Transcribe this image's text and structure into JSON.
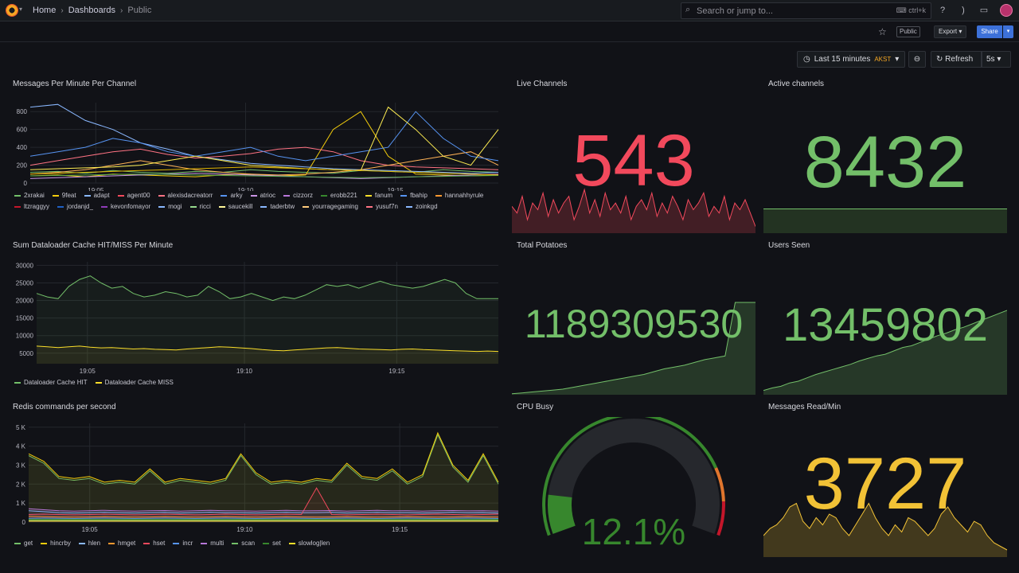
{
  "breadcrumb": {
    "home": "Home",
    "dashboards": "Dashboards",
    "current": "Public"
  },
  "search": {
    "placeholder": "Search or jump to...",
    "shortcut": "ctrl+k"
  },
  "toolbar": {
    "public_badge": "Public",
    "export_label": "Export",
    "share_label": "Share"
  },
  "time": {
    "range_label": "Last 15 minutes",
    "timezone": "AKST",
    "refresh_label": "Refresh",
    "interval": "5s"
  },
  "panels": {
    "messages_per_minute": {
      "title": "Messages Per Minute Per Channel"
    },
    "live_channels": {
      "title": "Live Channels",
      "value": "543",
      "color": "#f2495c"
    },
    "active_channels": {
      "title": "Active channels",
      "value": "8432",
      "color": "#73bf69"
    },
    "dataloader": {
      "title": "Sum Dataloader Cache HIT/MISS Per Minute"
    },
    "total_potatoes": {
      "title": "Total Potatoes",
      "value": "1189309530",
      "color": "#73bf69"
    },
    "users_seen": {
      "title": "Users Seen",
      "value": "13459802",
      "color": "#73bf69"
    },
    "redis": {
      "title": "Redis commands per second"
    },
    "cpu_busy": {
      "title": "CPU Busy",
      "value": "12.1%",
      "value_percent": 12.1,
      "color": "#37872d"
    },
    "messages_read": {
      "title": "Messages Read/Min",
      "value": "3727",
      "color": "#f2c236"
    }
  },
  "chart_data": [
    {
      "type": "line",
      "title": "Messages Per Minute Per Channel",
      "x_ticks": [
        "19:05",
        "19:10",
        "19:15"
      ],
      "y_ticks": [
        "0",
        "200",
        "400",
        "600",
        "800"
      ],
      "ylim": [
        0,
        900
      ],
      "series": [
        {
          "name": "2xrakai",
          "color": "#73bf69",
          "values": [
            120,
            130,
            110,
            140,
            120,
            110,
            130,
            120,
            150,
            130,
            120,
            110,
            140,
            130,
            120,
            150,
            130,
            120
          ]
        },
        {
          "name": "9feat",
          "color": "#f2cc0c",
          "values": [
            80,
            90,
            70,
            100,
            90,
            80,
            70,
            90,
            100,
            80,
            90,
            600,
            800,
            300,
            100,
            90,
            80,
            90
          ]
        },
        {
          "name": "adapt",
          "color": "#8ab8ff",
          "values": [
            850,
            880,
            700,
            600,
            450,
            380,
            300,
            260,
            220,
            200,
            180,
            160,
            150,
            140,
            130,
            120,
            110,
            120
          ]
        },
        {
          "name": "agent00",
          "color": "#ff7383",
          "values": [
            200,
            250,
            300,
            350,
            380,
            320,
            280,
            300,
            330,
            380,
            400,
            350,
            250,
            200,
            180,
            170,
            160,
            150
          ]
        },
        {
          "name": "alexisdacreatorr",
          "color": "#ffb357",
          "values": [
            100,
            120,
            150,
            200,
            250,
            200,
            150,
            120,
            100,
            90,
            100,
            120,
            150,
            200,
            250,
            300,
            350,
            200
          ]
        },
        {
          "name": "arky",
          "color": "#5794f2",
          "values": [
            300,
            350,
            400,
            500,
            450,
            350,
            300,
            350,
            400,
            300,
            250,
            300,
            350,
            400,
            800,
            500,
            300,
            250
          ]
        },
        {
          "name": "atrioc",
          "color": "#ca95e5",
          "values": [
            50,
            60,
            70,
            80,
            90,
            100,
            110,
            100,
            90,
            80,
            70,
            60,
            50,
            60,
            70,
            80,
            90,
            100
          ]
        },
        {
          "name": "cizzorz",
          "color": "#ffee52",
          "values": [
            150,
            160,
            170,
            180,
            200,
            250,
            300,
            250,
            200,
            180,
            160,
            150,
            140,
            850,
            600,
            300,
            200,
            600
          ]
        },
        {
          "name": "erobb221",
          "color": "#56a64b",
          "values": [
            80,
            85,
            90,
            95,
            100,
            95,
            90,
            85,
            80,
            75,
            70,
            65,
            60,
            65,
            70,
            75,
            80,
            85
          ]
        },
        {
          "name": "fanum",
          "color": "#e0b400",
          "values": [
            100,
            110,
            120,
            130,
            140,
            150,
            160,
            170,
            180,
            170,
            160,
            150,
            140,
            130,
            120,
            110,
            100,
            90
          ]
        }
      ]
    },
    {
      "type": "line",
      "title": "Sum Dataloader Cache HIT/MISS Per Minute",
      "x_ticks": [
        "19:05",
        "19:10",
        "19:15"
      ],
      "y_ticks": [
        "5000",
        "10000",
        "15000",
        "20000",
        "25000",
        "30000"
      ],
      "ylim": [
        2000,
        31000
      ],
      "series": [
        {
          "name": "Dataloader Cache HIT",
          "color": "#73bf69",
          "values": [
            22000,
            21000,
            20500,
            24000,
            26000,
            27000,
            25000,
            23500,
            24000,
            22000,
            21000,
            21500,
            22500,
            22000,
            21000,
            21500,
            24000,
            22500,
            20500,
            21000,
            22000,
            21000,
            20000,
            21000,
            20500,
            21500,
            23000,
            24500,
            24000,
            24500,
            23500,
            24500,
            25500,
            24500,
            24000,
            23500,
            24000,
            25000,
            26000,
            25000,
            22000,
            20500,
            20500,
            20500
          ]
        },
        {
          "name": "Dataloader Cache MISS",
          "color": "#fade2a",
          "values": [
            7000,
            6800,
            6600,
            6800,
            7000,
            6700,
            6500,
            6600,
            6400,
            6200,
            6300,
            6100,
            6000,
            5900,
            6200,
            6400,
            6600,
            6800,
            6700,
            6500,
            6300,
            6000,
            5800,
            5700,
            5900,
            6100,
            6300,
            6500,
            6600,
            6400,
            6200,
            6100,
            6000,
            5900,
            6100,
            6200,
            6000,
            5900,
            5800,
            5700,
            5600,
            5500,
            5600,
            5500
          ]
        }
      ]
    },
    {
      "type": "line",
      "title": "Redis commands per second",
      "x_ticks": [
        "19:05",
        "19:10",
        "19:15"
      ],
      "y_ticks": [
        "0",
        "1 K",
        "2 K",
        "3 K",
        "4 K",
        "5 K"
      ],
      "ylim": [
        0,
        5200
      ],
      "series": [
        {
          "name": "get",
          "color": "#73bf69",
          "values": [
            3500,
            3100,
            2300,
            2200,
            2300,
            2000,
            2100,
            2000,
            2700,
            2000,
            2200,
            2100,
            2000,
            2200,
            3500,
            2500,
            2000,
            2100,
            2000,
            2200,
            2100,
            3000,
            2300,
            2200,
            2700,
            2000,
            2400,
            4600,
            2900,
            2100,
            3500,
            2000
          ]
        },
        {
          "name": "hincrby",
          "color": "#f2cc0c",
          "values": [
            3600,
            3200,
            2400,
            2300,
            2400,
            2100,
            2200,
            2100,
            2800,
            2100,
            2300,
            2200,
            2100,
            2300,
            3600,
            2600,
            2100,
            2200,
            2100,
            2300,
            2200,
            3100,
            2400,
            2300,
            2800,
            2100,
            2500,
            4700,
            3000,
            2200,
            3600,
            2100
          ]
        },
        {
          "name": "hlen",
          "color": "#8ab8ff",
          "values": [
            600,
            550,
            500,
            480,
            500,
            520,
            490,
            480,
            500,
            510,
            480,
            500,
            520,
            500,
            490,
            480,
            500,
            520,
            490,
            500,
            510,
            480,
            500,
            520,
            490,
            500,
            480,
            500,
            510,
            490,
            500,
            480
          ]
        },
        {
          "name": "hmget",
          "color": "#ff9830",
          "values": [
            300,
            280,
            270,
            260,
            270,
            280,
            270,
            260,
            270,
            280,
            270,
            260,
            270,
            280,
            270,
            260,
            270,
            280,
            270,
            260,
            270,
            280,
            270,
            260,
            270,
            280,
            270,
            260,
            270,
            280,
            270,
            260
          ]
        },
        {
          "name": "hset",
          "color": "#f2495c",
          "values": [
            400,
            420,
            400,
            380,
            400,
            420,
            400,
            380,
            400,
            420,
            400,
            380,
            400,
            420,
            400,
            380,
            400,
            420,
            400,
            1800,
            400,
            380,
            400,
            420,
            400,
            380,
            400,
            420,
            400,
            380,
            400,
            420
          ]
        },
        {
          "name": "incr",
          "color": "#5794f2",
          "values": [
            200,
            210,
            200,
            190,
            200,
            210,
            200,
            190,
            200,
            210,
            200,
            190,
            200,
            210,
            200,
            190,
            200,
            210,
            200,
            190,
            200,
            210,
            200,
            190,
            200,
            210,
            200,
            190,
            200,
            210,
            200,
            190
          ]
        },
        {
          "name": "multi",
          "color": "#b877d9",
          "values": [
            700,
            650,
            600,
            580,
            600,
            620,
            590,
            580,
            600,
            610,
            580,
            600,
            620,
            600,
            590,
            580,
            600,
            620,
            590,
            600,
            610,
            580,
            600,
            620,
            590,
            600,
            580,
            600,
            610,
            590,
            600,
            580
          ]
        },
        {
          "name": "scan",
          "color": "#73bf69",
          "values": [
            100,
            100,
            100,
            100,
            100,
            100,
            100,
            100,
            100,
            100,
            100,
            100,
            100,
            100,
            100,
            100,
            100,
            100,
            100,
            100,
            100,
            100,
            100,
            100,
            100,
            100,
            100,
            100,
            100,
            100,
            100,
            100
          ]
        },
        {
          "name": "set",
          "color": "#37872d",
          "values": [
            150,
            150,
            150,
            150,
            150,
            150,
            150,
            150,
            150,
            150,
            150,
            150,
            150,
            150,
            150,
            150,
            150,
            150,
            150,
            150,
            150,
            150,
            150,
            150,
            150,
            150,
            150,
            150,
            150,
            150,
            150,
            150
          ]
        },
        {
          "name": "slowlog|len",
          "color": "#fade2a",
          "values": [
            50,
            50,
            50,
            50,
            50,
            50,
            50,
            50,
            50,
            50,
            50,
            50,
            50,
            50,
            50,
            50,
            50,
            50,
            50,
            50,
            50,
            50,
            50,
            50,
            50,
            50,
            50,
            50,
            50,
            50,
            50,
            50
          ]
        }
      ]
    }
  ],
  "legends": {
    "messages": [
      {
        "name": "2xrakai",
        "color": "#73bf69"
      },
      {
        "name": "9feat",
        "color": "#f2cc0c"
      },
      {
        "name": "adapt",
        "color": "#8ab8ff"
      },
      {
        "name": "agent00",
        "color": "#f2495c"
      },
      {
        "name": "alexisdacreatorr",
        "color": "#ff7383"
      },
      {
        "name": "arky",
        "color": "#5794f2"
      },
      {
        "name": "atrioc",
        "color": "#ca95e5"
      },
      {
        "name": "cizzorz",
        "color": "#b877d9"
      },
      {
        "name": "erobb221",
        "color": "#37872d"
      },
      {
        "name": "fanum",
        "color": "#fade2a"
      },
      {
        "name": "fbahip",
        "color": "#5794f2"
      },
      {
        "name": "hannahhyrule",
        "color": "#ff9830"
      },
      {
        "name": "ltzraggyy",
        "color": "#c4162a"
      },
      {
        "name": "jordanjd_",
        "color": "#1f60c4"
      },
      {
        "name": "kevonfomayor",
        "color": "#8f3bb8"
      },
      {
        "name": "mogi",
        "color": "#8ab8ff"
      },
      {
        "name": "ricci",
        "color": "#96d98d"
      },
      {
        "name": "saucekill",
        "color": "#fff899"
      },
      {
        "name": "taderbtw",
        "color": "#8ab8ff"
      },
      {
        "name": "yourragegaming",
        "color": "#ffcb7d"
      },
      {
        "name": "yusuf7n",
        "color": "#ff7383"
      },
      {
        "name": "zoinkgd",
        "color": "#8ab8ff"
      }
    ],
    "dataloader": [
      {
        "name": "Dataloader Cache HIT",
        "color": "#73bf69"
      },
      {
        "name": "Dataloader Cache MISS",
        "color": "#fade2a"
      }
    ],
    "redis": [
      {
        "name": "get",
        "color": "#73bf69"
      },
      {
        "name": "hincrby",
        "color": "#f2cc0c"
      },
      {
        "name": "hlen",
        "color": "#8ab8ff"
      },
      {
        "name": "hmget",
        "color": "#ff9830"
      },
      {
        "name": "hset",
        "color": "#f2495c"
      },
      {
        "name": "incr",
        "color": "#5794f2"
      },
      {
        "name": "multi",
        "color": "#b877d9"
      },
      {
        "name": "scan",
        "color": "#73bf69"
      },
      {
        "name": "set",
        "color": "#37872d"
      },
      {
        "name": "slowlog|len",
        "color": "#fade2a"
      }
    ]
  },
  "sparklines": {
    "live_channels": [
      40,
      30,
      55,
      20,
      45,
      35,
      60,
      25,
      50,
      30,
      45,
      55,
      20,
      40,
      65,
      30,
      50,
      25,
      60,
      35,
      45,
      30,
      55,
      20,
      40,
      50,
      35,
      60,
      25,
      45,
      30,
      55,
      40,
      20,
      50,
      35,
      45,
      60,
      25,
      40,
      30,
      55,
      20,
      45,
      35,
      50,
      30,
      10
    ],
    "active_channels": [
      8432,
      8432,
      8432,
      8432,
      8432,
      8432,
      8432,
      8432
    ],
    "total_potatoes": [
      1,
      2,
      3,
      4,
      5,
      6,
      8,
      10,
      12,
      14,
      16,
      18,
      20,
      22,
      25,
      28,
      30,
      32,
      35,
      38,
      40,
      42,
      100,
      100,
      100
    ],
    "users_seen": [
      5,
      8,
      10,
      14,
      16,
      20,
      24,
      27,
      30,
      33,
      36,
      40,
      43,
      46,
      48,
      52,
      56,
      58,
      62,
      66,
      70,
      73,
      77,
      80,
      84,
      88,
      92,
      96,
      100
    ],
    "messages_read": [
      30,
      40,
      45,
      55,
      70,
      75,
      50,
      40,
      55,
      45,
      60,
      55,
      40,
      30,
      45,
      60,
      75,
      55,
      40,
      30,
      45,
      35,
      55,
      50,
      40,
      30,
      40,
      60,
      70,
      55,
      45,
      35,
      50,
      45,
      30,
      20,
      15,
      10
    ]
  },
  "icons": {
    "logo": "grafana-logo",
    "search": "search-icon",
    "help": "help-icon",
    "news": "rss-icon",
    "kiosk": "monitor-icon",
    "star": "star-icon",
    "clock": "clock-icon",
    "zoom": "zoom-out-icon",
    "refresh": "refresh-icon"
  }
}
